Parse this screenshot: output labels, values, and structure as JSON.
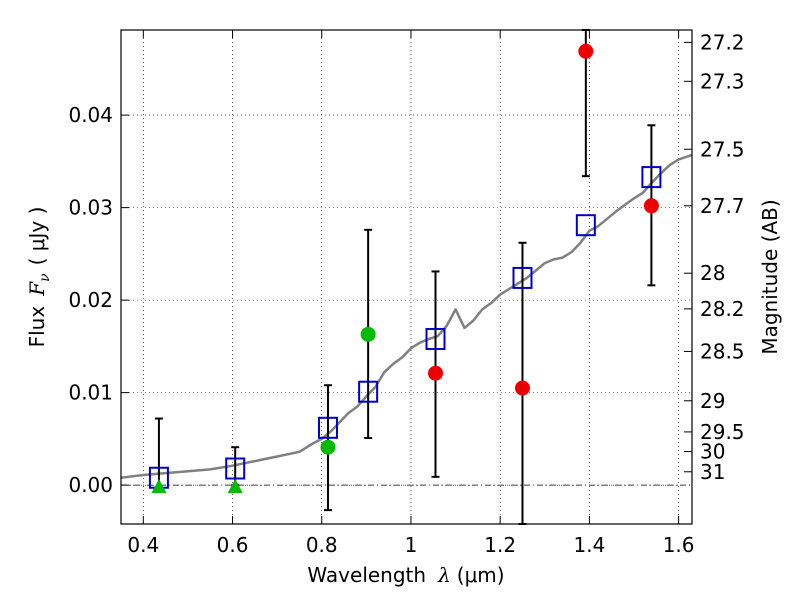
{
  "chart_data": {
    "type": "scatter",
    "xlabel": {
      "text": "Wavelength",
      "symbol": "λ",
      "unit": "(μm)"
    },
    "ylabel": {
      "text": "Flux",
      "symbol": "F",
      "subscript": "ν",
      "unit": "( μJy )"
    },
    "y2label": "Magnitude (AB)",
    "xlim": [
      0.35,
      1.63
    ],
    "ylim": [
      -0.0042,
      0.0492
    ],
    "grid": true,
    "x_ticks": [
      {
        "value": 0.4,
        "label": "0.4"
      },
      {
        "value": 0.6,
        "label": "0.6"
      },
      {
        "value": 0.8,
        "label": "0.8"
      },
      {
        "value": 1.0,
        "label": "1"
      },
      {
        "value": 1.2,
        "label": "1.2"
      },
      {
        "value": 1.4,
        "label": "1.4"
      },
      {
        "value": 1.6,
        "label": "1.6"
      }
    ],
    "y_ticks": [
      {
        "value": 0.0,
        "label": "0.00"
      },
      {
        "value": 0.01,
        "label": "0.01"
      },
      {
        "value": 0.02,
        "label": "0.02"
      },
      {
        "value": 0.03,
        "label": "0.03"
      },
      {
        "value": 0.04,
        "label": "0.04"
      }
    ],
    "magnitude_ticks": [
      {
        "mag": 27.2,
        "label": "27.2"
      },
      {
        "mag": 27.3,
        "label": "27.3"
      },
      {
        "mag": 27.5,
        "label": "27.5"
      },
      {
        "mag": 27.7,
        "label": "27.7"
      },
      {
        "mag": 28.0,
        "label": "28"
      },
      {
        "mag": 28.2,
        "label": "28.2"
      },
      {
        "mag": 28.5,
        "label": "28.5"
      },
      {
        "mag": 29.0,
        "label": "29"
      },
      {
        "mag": 29.5,
        "label": "29.5"
      },
      {
        "mag": 30.0,
        "label": "30"
      },
      {
        "mag": 31.0,
        "label": "31"
      }
    ],
    "series": [
      {
        "name": "model spectrum",
        "kind": "line",
        "color": "#808080",
        "x": [
          0.35,
          0.4,
          0.45,
          0.5,
          0.55,
          0.6,
          0.65,
          0.7,
          0.75,
          0.78,
          0.8,
          0.82,
          0.84,
          0.86,
          0.88,
          0.9,
          0.92,
          0.94,
          0.96,
          0.98,
          1.0,
          1.02,
          1.04,
          1.06,
          1.08,
          1.1,
          1.12,
          1.14,
          1.16,
          1.18,
          1.2,
          1.22,
          1.24,
          1.26,
          1.28,
          1.3,
          1.32,
          1.34,
          1.36,
          1.38,
          1.4,
          1.42,
          1.44,
          1.46,
          1.48,
          1.5,
          1.52,
          1.54,
          1.56,
          1.58,
          1.6,
          1.63
        ],
        "y": [
          0.0008,
          0.0011,
          0.0013,
          0.0015,
          0.0017,
          0.0021,
          0.0026,
          0.0031,
          0.0036,
          0.0045,
          0.005,
          0.0058,
          0.0068,
          0.0078,
          0.0085,
          0.0096,
          0.0106,
          0.0122,
          0.0131,
          0.0138,
          0.0148,
          0.0154,
          0.0158,
          0.0161,
          0.0172,
          0.019,
          0.017,
          0.0178,
          0.019,
          0.0197,
          0.0206,
          0.0212,
          0.0218,
          0.0224,
          0.0232,
          0.024,
          0.0244,
          0.0246,
          0.0252,
          0.0262,
          0.0275,
          0.028,
          0.0288,
          0.0296,
          0.0303,
          0.031,
          0.0316,
          0.0327,
          0.0337,
          0.0346,
          0.0352,
          0.0357
        ]
      },
      {
        "name": "model photometry",
        "kind": "open-square",
        "color": "#0000cc",
        "x": [
          0.435,
          0.606,
          0.814,
          0.904,
          1.055,
          1.25,
          1.392,
          1.539
        ],
        "y": [
          0.0008,
          0.0018,
          0.0062,
          0.0101,
          0.0158,
          0.0224,
          0.0281,
          0.0333
        ]
      },
      {
        "name": "detections (filled circles, red)",
        "kind": "circle",
        "color": "#ee0000",
        "x": [
          1.055,
          1.25,
          1.392,
          1.539
        ],
        "y": [
          0.0121,
          0.0105,
          0.0469,
          0.0302
        ]
      },
      {
        "name": "detections (filled circles, green)",
        "kind": "circle",
        "color": "#00bb00",
        "x": [
          0.814,
          0.904
        ],
        "y": [
          0.0041,
          0.0163
        ]
      },
      {
        "name": "upper limits (triangles, green)",
        "kind": "triangle",
        "color": "#00bb00",
        "x": [
          0.435,
          0.606
        ],
        "y": [
          -0.0002,
          -0.0002
        ]
      }
    ],
    "error_bars": [
      {
        "x": 0.435,
        "low": -0.0004,
        "high": 0.0072
      },
      {
        "x": 0.606,
        "low": 0.0,
        "high": 0.0041
      },
      {
        "x": 0.814,
        "low": -0.0027,
        "high": 0.0108
      },
      {
        "x": 0.904,
        "low": 0.0051,
        "high": 0.0276
      },
      {
        "x": 1.055,
        "low": 0.0009,
        "high": 0.0231
      },
      {
        "x": 1.25,
        "low": -0.0042,
        "high": 0.0262
      },
      {
        "x": 1.392,
        "low": 0.0334,
        "high": 0.0492
      },
      {
        "x": 1.539,
        "low": 0.0216,
        "high": 0.0389
      }
    ]
  }
}
